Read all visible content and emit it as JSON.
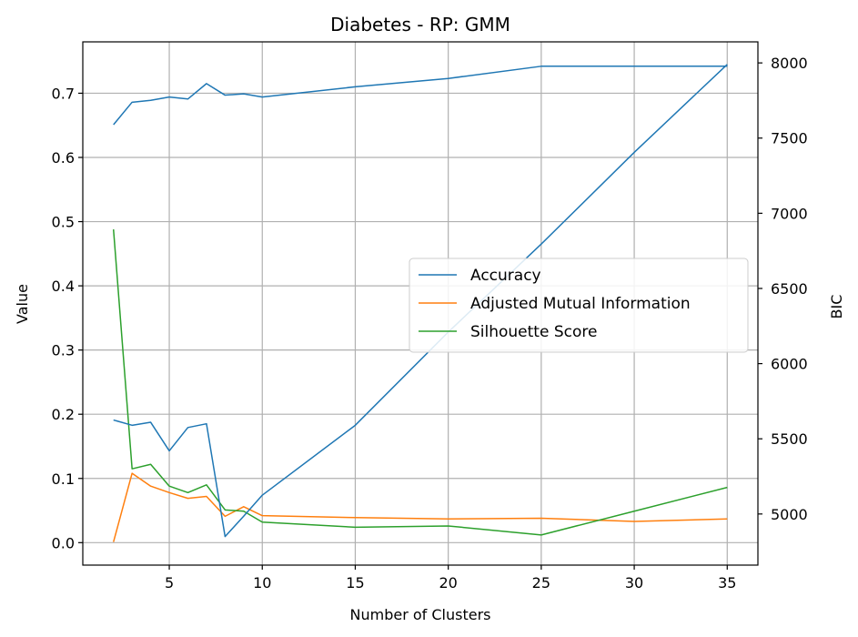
{
  "chart_data": {
    "type": "line",
    "title": "Diabetes - RP: GMM",
    "xlabel": "Number of Clusters",
    "ylabel": "Value",
    "y2label": "BIC",
    "xlim": [
      0.35,
      36.65
    ],
    "ylim": [
      -0.035,
      0.78
    ],
    "y2lim": [
      4660,
      8140
    ],
    "xticks": [
      5,
      10,
      15,
      20,
      25,
      30,
      35
    ],
    "yticks": [
      0.0,
      0.1,
      0.2,
      0.3,
      0.4,
      0.5,
      0.6,
      0.7
    ],
    "y2ticks": [
      5000,
      5500,
      6000,
      6500,
      7000,
      7500,
      8000
    ],
    "grid": true,
    "legend_position": "center-right",
    "x": [
      2,
      3,
      4,
      5,
      6,
      7,
      8,
      9,
      10,
      15,
      20,
      25,
      30,
      35
    ],
    "series": [
      {
        "name": "Accuracy",
        "axis": "left",
        "color": "#1f77b4",
        "values": [
          0.651,
          0.686,
          0.689,
          0.694,
          0.691,
          0.715,
          0.697,
          0.699,
          0.694,
          0.71,
          0.723,
          0.742,
          0.742,
          0.742
        ]
      },
      {
        "name": "Adjusted Mutual Information",
        "axis": "left",
        "color": "#ff7f0e",
        "values": [
          0.001,
          0.108,
          0.088,
          0.078,
          0.069,
          0.072,
          0.041,
          0.056,
          0.042,
          0.039,
          0.037,
          0.038,
          0.033,
          0.037
        ]
      },
      {
        "name": "Silhouette Score",
        "axis": "left",
        "color": "#2ca02c",
        "values": [
          0.488,
          0.115,
          0.122,
          0.088,
          0.078,
          0.09,
          0.051,
          0.049,
          0.032,
          0.024,
          0.026,
          0.012,
          0.049,
          0.086
        ]
      },
      {
        "name": "",
        "axis": "right",
        "color": "#1f77b4",
        "values": [
          5625,
          5590,
          5610,
          5420,
          5575,
          5600,
          4850,
          4985,
          5125,
          5590,
          6210,
          6795,
          7405,
          7990
        ]
      }
    ]
  }
}
